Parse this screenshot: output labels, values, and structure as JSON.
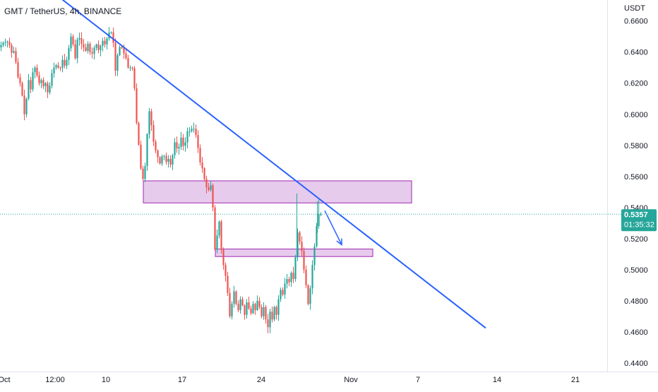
{
  "header": {
    "symbol_title": "GMT / TetherUS, 4h, BINANCE"
  },
  "price_axis": {
    "currency": "USDT"
  },
  "price_label": {
    "price": "0.5357",
    "countdown": "01:35:32"
  },
  "colors": {
    "up": "#26a69a",
    "down": "#ef5350",
    "trendline": "#2962ff",
    "zone_fill": "#e1bee7",
    "zone_border": "#9c27b0",
    "price_line": "#26a69a",
    "axis_text": "#131722",
    "background": "#ffffff"
  },
  "chart_data": {
    "type": "candlestick",
    "title": "GMT / TetherUS, 4h, BINANCE",
    "ylabel": "USDT",
    "ylim": [
      0.4345,
      0.6735
    ],
    "y_ticks": [
      0.44,
      0.46,
      0.48,
      0.5,
      0.52,
      0.54,
      0.56,
      0.58,
      0.6,
      0.62,
      0.64,
      0.66
    ],
    "x_ticks": [
      "Oct",
      "12:00",
      "10",
      "17",
      "24",
      "Nov",
      "7",
      "14",
      "21"
    ],
    "grid": false,
    "last_price": 0.5357,
    "price_path": [
      [
        0,
        0.643
      ],
      [
        6,
        0.646
      ],
      [
        11,
        0.647
      ],
      [
        14,
        0.646
      ],
      [
        19,
        0.638
      ],
      [
        22,
        0.642
      ],
      [
        26,
        0.625
      ],
      [
        30,
        0.62
      ],
      [
        33,
        0.612
      ],
      [
        36,
        0.6
      ],
      [
        39,
        0.61
      ],
      [
        42,
        0.622
      ],
      [
        45,
        0.616
      ],
      [
        48,
        0.627
      ],
      [
        51,
        0.63
      ],
      [
        54,
        0.625
      ],
      [
        57,
        0.62
      ],
      [
        60,
        0.622
      ],
      [
        63,
        0.618
      ],
      [
        66,
        0.62
      ],
      [
        70,
        0.612
      ],
      [
        74,
        0.625
      ],
      [
        78,
        0.63
      ],
      [
        82,
        0.632
      ],
      [
        86,
        0.628
      ],
      [
        90,
        0.635
      ],
      [
        94,
        0.63
      ],
      [
        98,
        0.64
      ],
      [
        102,
        0.65
      ],
      [
        105,
        0.645
      ],
      [
        108,
        0.636
      ],
      [
        112,
        0.652
      ],
      [
        116,
        0.646
      ],
      [
        120,
        0.643
      ],
      [
        124,
        0.64
      ],
      [
        127,
        0.648
      ],
      [
        130,
        0.636
      ],
      [
        134,
        0.642
      ],
      [
        138,
        0.645
      ],
      [
        142,
        0.64
      ],
      [
        146,
        0.648
      ],
      [
        150,
        0.645
      ],
      [
        154,
        0.65
      ],
      [
        158,
        0.655
      ],
      [
        162,
        0.646
      ],
      [
        165,
        0.628
      ],
      [
        168,
        0.638
      ],
      [
        172,
        0.645
      ],
      [
        176,
        0.64
      ],
      [
        180,
        0.636
      ],
      [
        184,
        0.628
      ],
      [
        188,
        0.632
      ],
      [
        191,
        0.625
      ],
      [
        194,
        0.6
      ],
      [
        197,
        0.583
      ],
      [
        200,
        0.575
      ],
      [
        202,
        0.555
      ],
      [
        205,
        0.56
      ],
      [
        208,
        0.57
      ],
      [
        211,
        0.596
      ],
      [
        214,
        0.605
      ],
      [
        217,
        0.587
      ],
      [
        220,
        0.58
      ],
      [
        223,
        0.575
      ],
      [
        226,
        0.571
      ],
      [
        229,
        0.567
      ],
      [
        232,
        0.576
      ],
      [
        235,
        0.572
      ],
      [
        238,
        0.568
      ],
      [
        241,
        0.573
      ],
      [
        244,
        0.565
      ],
      [
        247,
        0.578
      ],
      [
        250,
        0.584
      ],
      [
        253,
        0.575
      ],
      [
        256,
        0.581
      ],
      [
        259,
        0.587
      ],
      [
        262,
        0.576
      ],
      [
        265,
        0.585
      ],
      [
        268,
        0.591
      ],
      [
        271,
        0.588
      ],
      [
        274,
        0.592
      ],
      [
        277,
        0.59
      ],
      [
        280,
        0.585
      ],
      [
        283,
        0.575
      ],
      [
        286,
        0.566
      ],
      [
        289,
        0.565
      ],
      [
        292,
        0.555
      ],
      [
        295,
        0.552
      ],
      [
        298,
        0.551
      ],
      [
        301,
        0.556
      ],
      [
        303,
        0.54
      ],
      [
        306,
        0.513
      ],
      [
        309,
        0.522
      ],
      [
        312,
        0.531
      ],
      [
        315,
        0.513
      ],
      [
        318,
        0.503
      ],
      [
        321,
        0.496
      ],
      [
        324,
        0.485
      ],
      [
        327,
        0.47
      ],
      [
        330,
        0.478
      ],
      [
        333,
        0.486
      ],
      [
        336,
        0.478
      ],
      [
        339,
        0.474
      ],
      [
        342,
        0.481
      ],
      [
        345,
        0.477
      ],
      [
        348,
        0.471
      ],
      [
        351,
        0.479
      ],
      [
        354,
        0.475
      ],
      [
        357,
        0.472
      ],
      [
        360,
        0.478
      ],
      [
        363,
        0.474
      ],
      [
        366,
        0.48
      ],
      [
        369,
        0.476
      ],
      [
        372,
        0.47
      ],
      [
        375,
        0.476
      ],
      [
        378,
        0.468
      ],
      [
        381,
        0.463
      ],
      [
        384,
        0.473
      ],
      [
        387,
        0.468
      ],
      [
        390,
        0.476
      ],
      [
        393,
        0.471
      ],
      [
        396,
        0.481
      ],
      [
        399,
        0.487
      ],
      [
        402,
        0.484
      ],
      [
        405,
        0.491
      ],
      [
        408,
        0.494
      ],
      [
        411,
        0.492
      ],
      [
        414,
        0.498
      ],
      [
        417,
        0.494
      ],
      [
        420,
        0.508
      ],
      [
        423,
        0.524
      ],
      [
        426,
        0.518
      ],
      [
        429,
        0.512
      ],
      [
        432,
        0.5
      ],
      [
        435,
        0.49
      ],
      [
        438,
        0.478
      ],
      [
        441,
        0.488
      ],
      [
        444,
        0.503
      ],
      [
        447,
        0.515
      ],
      [
        450,
        0.528
      ],
      [
        453,
        0.5357
      ]
    ],
    "zones": [
      {
        "x_start": 203,
        "x_end": 583,
        "top": 0.5572,
        "bottom": 0.543
      },
      {
        "x_start": 305,
        "x_end": 528,
        "top": 0.5133,
        "bottom": 0.5085
      }
    ],
    "trendline": {
      "x1": 82,
      "y1": 0.676,
      "x2": 688,
      "y2": 0.4625
    },
    "arrow": {
      "x1": 460,
      "y1": 0.538,
      "x2": 484,
      "y2": 0.516
    }
  }
}
